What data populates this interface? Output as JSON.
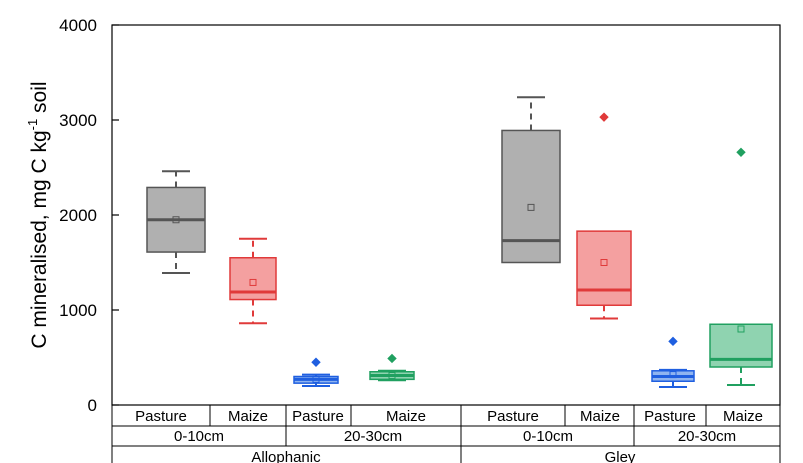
{
  "chart_data": {
    "type": "box",
    "ylabel_main": "C mineralised, mg C kg",
    "ylabel_sup": "-1",
    "ylabel_end": " soil",
    "ylim": [
      0,
      4000
    ],
    "yticks": [
      "0",
      "1000",
      "2000",
      "3000",
      "4000"
    ],
    "ytick_values": [
      0,
      1000,
      2000,
      3000,
      4000
    ],
    "grid": false,
    "legend": "none",
    "x_row1": [
      "Pasture",
      "Maize",
      "Pasture",
      "Maize",
      "Pasture",
      "Maize",
      "Pasture",
      "Maize"
    ],
    "x_row2": [
      "0-10cm",
      "20-30cm",
      "0-10cm",
      "20-30cm"
    ],
    "x_row3": [
      "Allophanic",
      "Gley"
    ],
    "boxes": [
      {
        "soil": "Allophanic",
        "depth": "0-10cm",
        "land_use": "Pasture",
        "whisker_low": 1390,
        "q1": 1610,
        "median": 1950,
        "mean": 1950,
        "q3": 2290,
        "whisker_high": 2460,
        "outliers": [],
        "color": "#b0b0b0",
        "stroke": "#555555"
      },
      {
        "soil": "Allophanic",
        "depth": "0-10cm",
        "land_use": "Maize",
        "whisker_low": 860,
        "q1": 1110,
        "median": 1190,
        "mean": 1290,
        "q3": 1550,
        "whisker_high": 1750,
        "outliers": [],
        "color": "#f4a0a0",
        "stroke": "#e03a3a"
      },
      {
        "soil": "Allophanic",
        "depth": "20-30cm",
        "land_use": "Pasture",
        "whisker_low": 200,
        "q1": 230,
        "median": 270,
        "mean": 270,
        "q3": 300,
        "whisker_high": 320,
        "outliers": [
          450
        ],
        "color": "#8fb4f0",
        "stroke": "#1f5fe0"
      },
      {
        "soil": "Allophanic",
        "depth": "20-30cm",
        "land_use": "Maize",
        "whisker_low": 260,
        "q1": 270,
        "median": 310,
        "mean": 310,
        "q3": 350,
        "whisker_high": 360,
        "outliers": [
          490
        ],
        "color": "#8fd3b0",
        "stroke": "#20a060"
      },
      {
        "soil": "Gley",
        "depth": "0-10cm",
        "land_use": "Pasture",
        "whisker_low": 1500,
        "q1": 1500,
        "median": 1730,
        "mean": 2080,
        "q3": 2890,
        "whisker_high": 3240,
        "outliers": [],
        "color": "#b0b0b0",
        "stroke": "#555555"
      },
      {
        "soil": "Gley",
        "depth": "0-10cm",
        "land_use": "Maize",
        "whisker_low": 910,
        "q1": 1050,
        "median": 1210,
        "mean": 1500,
        "q3": 1830,
        "whisker_high": 1830,
        "outliers": [
          3030
        ],
        "color": "#f4a0a0",
        "stroke": "#e03a3a"
      },
      {
        "soil": "Gley",
        "depth": "20-30cm",
        "land_use": "Pasture",
        "whisker_low": 190,
        "q1": 250,
        "median": 300,
        "mean": 320,
        "q3": 360,
        "whisker_high": 370,
        "outliers": [
          670
        ],
        "color": "#8fb4f0",
        "stroke": "#1f5fe0"
      },
      {
        "soil": "Gley",
        "depth": "20-30cm",
        "land_use": "Maize",
        "whisker_low": 210,
        "q1": 400,
        "median": 480,
        "mean": 800,
        "q3": 850,
        "whisker_high": 850,
        "outliers": [
          2660
        ],
        "color": "#8fd3b0",
        "stroke": "#20a060"
      }
    ]
  }
}
